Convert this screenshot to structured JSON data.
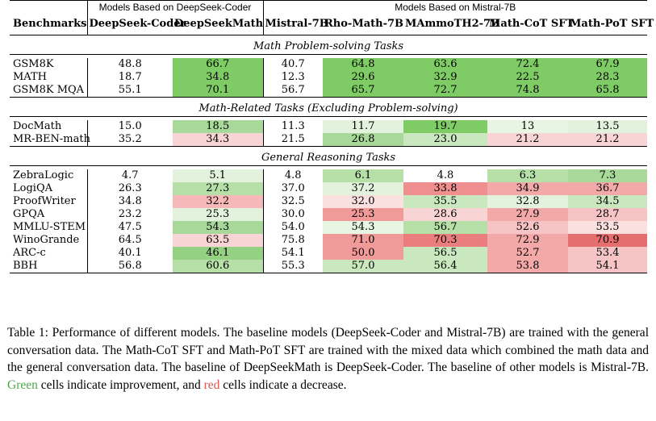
{
  "table": {
    "groups": {
      "deepseek": "Models Based on DeepSeek-Coder",
      "mistral": "Models Based on Mistral-7B"
    },
    "columns": [
      "Benchmarks",
      "DeepSeek-Coder",
      "DeepSeekMath",
      "Mistral-7B",
      "Rho-Math-7B",
      "MAmmoTH2-7B",
      "Math-CoT SFT",
      "Math-PoT SFT"
    ],
    "sections": [
      {
        "title": "Math Problem-solving Tasks",
        "rows": [
          {
            "name": "GSM8K",
            "values": [
              "48.8",
              "66.7",
              "40.7",
              "64.8",
              "63.6",
              "72.4",
              "67.9"
            ],
            "colors": [
              "",
              "#7fcc66",
              "",
              "#7fcc66",
              "#7fcc66",
              "#7fcc66",
              "#7fcc66"
            ]
          },
          {
            "name": "MATH",
            "values": [
              "18.7",
              "34.8",
              "12.3",
              "29.6",
              "32.9",
              "22.5",
              "28.3"
            ],
            "colors": [
              "",
              "#7fcc66",
              "",
              "#7fcc66",
              "#7fcc66",
              "#7fcc66",
              "#7fcc66"
            ]
          },
          {
            "name": "GSM8K MQA",
            "values": [
              "55.1",
              "70.1",
              "56.7",
              "65.7",
              "72.7",
              "74.8",
              "65.8"
            ],
            "colors": [
              "",
              "#7fcc66",
              "",
              "#7fcc66",
              "#7fcc66",
              "#7fcc66",
              "#7fcc66"
            ]
          }
        ]
      },
      {
        "title": "Math-Related Tasks (Excluding Problem-solving)",
        "rows": [
          {
            "name": "DocMath",
            "values": [
              "15.0",
              "18.5",
              "11.3",
              "11.7",
              "19.7",
              "13",
              "13.5"
            ],
            "colors": [
              "",
              "#a8d99a",
              "",
              "#e2f2dc",
              "#7fcc66",
              "#e8f5e2",
              "#e2f2dc"
            ]
          },
          {
            "name": "MR-BEN-math",
            "values": [
              "35.2",
              "34.3",
              "21.5",
              "26.8",
              "23.0",
              "21.2",
              "21.2"
            ],
            "colors": [
              "",
              "#f9d4d4",
              "",
              "#a8d99a",
              "#c9e8bf",
              "#f9d4d4",
              "#f9d4d4"
            ]
          }
        ]
      },
      {
        "title": "General Reasoning Tasks",
        "rows": [
          {
            "name": "ZebraLogic",
            "values": [
              "4.7",
              "5.1",
              "4.8",
              "6.1",
              "4.8",
              "6.3",
              "7.3"
            ],
            "colors": [
              "",
              "#e2f2dc",
              "",
              "#b6e0a8",
              "",
              "#b6e0a8",
              "#a8d99a"
            ]
          },
          {
            "name": "LogiQA",
            "values": [
              "26.3",
              "27.3",
              "37.0",
              "37.2",
              "33.8",
              "34.9",
              "36.7"
            ],
            "colors": [
              "",
              "#b6e0a8",
              "",
              "#e2f2dc",
              "#ef8f8f",
              "#f4a9a9",
              "#f4a9a9"
            ]
          },
          {
            "name": "ProofWriter",
            "values": [
              "34.8",
              "32.2",
              "32.5",
              "32.0",
              "35.5",
              "32.8",
              "34.5"
            ],
            "colors": [
              "",
              "#f6b8b8",
              "",
              "#fbe0e0",
              "#c9e8bf",
              "#e2f2dc",
              "#c9e8bf"
            ]
          },
          {
            "name": "GPQA",
            "values": [
              "23.2",
              "25.3",
              "30.0",
              "25.3",
              "28.6",
              "27.9",
              "28.7"
            ],
            "colors": [
              "",
              "#e2f2dc",
              "",
              "#f19a9a",
              "#f9d4d4",
              "#f4a9a9",
              "#f6c4c4"
            ]
          },
          {
            "name": "MMLU-STEM",
            "values": [
              "47.5",
              "54.3",
              "54.0",
              "54.3",
              "56.7",
              "52.6",
              "53.5"
            ],
            "colors": [
              "",
              "#a8d99a",
              "",
              "#e8f5e2",
              "#b6e0a8",
              "#f6c4c4",
              "#fbe0e0"
            ]
          },
          {
            "name": "WinoGrande",
            "values": [
              "64.5",
              "63.5",
              "75.8",
              "71.0",
              "70.3",
              "72.9",
              "70.9"
            ],
            "colors": [
              "",
              "#f9d4d4",
              "",
              "#f19a9a",
              "#ea7d7d",
              "#f4a9a9",
              "#e56e6e"
            ]
          },
          {
            "name": "ARC-c",
            "values": [
              "40.1",
              "46.1",
              "54.1",
              "50.0",
              "56.5",
              "52.7",
              "53.4"
            ],
            "colors": [
              "",
              "#95d182",
              "",
              "#f19a9a",
              "#c9e8bf",
              "#f4a9a9",
              "#f6c4c4"
            ]
          },
          {
            "name": "BBH",
            "values": [
              "56.8",
              "60.6",
              "55.3",
              "57.0",
              "56.4",
              "53.8",
              "54.1"
            ],
            "colors": [
              "",
              "#b6e0a8",
              "",
              "#c9e8bf",
              "#c9e8bf",
              "#f4a9a9",
              "#f6c4c4"
            ]
          }
        ]
      }
    ]
  },
  "caption": {
    "part1": "Table 1:  Performance of different models. The baseline models (DeepSeek-Coder and Mistral-7B) are trained with the general conversation data. The Math-CoT SFT and Math-PoT SFT are trained with the mixed data which combined the math data and the general conversation data. The baseline of DeepSeekMath is DeepSeek-Coder. The baseline of other models is Mistral-7B. ",
    "green_word": "Green",
    "part2": " cells indicate improvement, and ",
    "red_word": "red",
    "part3": " cells indicate a decrease."
  }
}
